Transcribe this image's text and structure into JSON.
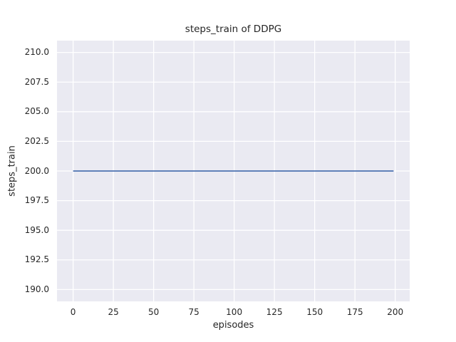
{
  "chart_data": {
    "type": "line",
    "title": "steps_train of DDPG",
    "xlabel": "episodes",
    "ylabel": "steps_train",
    "x_ticks": [
      0,
      25,
      50,
      75,
      100,
      125,
      150,
      175,
      200
    ],
    "y_ticks": [
      190.0,
      192.5,
      195.0,
      197.5,
      200.0,
      202.5,
      205.0,
      207.5,
      210.0
    ],
    "y_tick_decimals": 1,
    "xlim": [
      -10,
      209
    ],
    "ylim": [
      189.0,
      211.0
    ],
    "grid": true,
    "legend_position": "none",
    "series": [
      {
        "name": "steps_train",
        "x": [
          0,
          199
        ],
        "y": [
          200,
          200
        ]
      }
    ],
    "colors": {
      "line": "#4C72B0",
      "plot_background": "#EAEAF2",
      "gridline": "#FFFFFF",
      "text": "#262626",
      "figure_background": "#FFFFFF"
    }
  }
}
